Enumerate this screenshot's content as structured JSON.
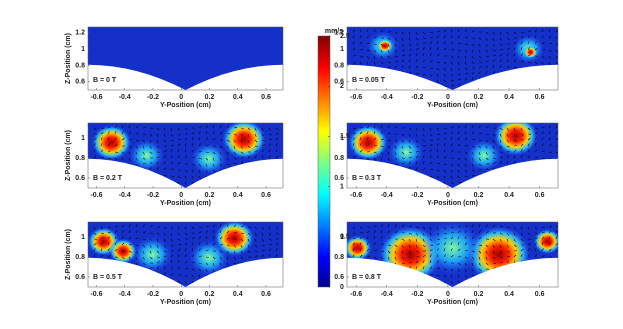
{
  "chart_data": [
    {
      "type": "heatmap",
      "annotation": "B = 0 T",
      "xlabel": "Y-Position (cm)",
      "ylabel": "Z-Position (cm)",
      "xlim": [
        -0.66,
        0.72
      ],
      "ylim": [
        0.5,
        1.27
      ],
      "xticks": [
        -0.6,
        -0.4,
        -0.2,
        0,
        0.2,
        0.4,
        0.6
      ],
      "yticks": [
        0.6,
        0.8,
        1,
        1.2
      ]
    },
    {
      "type": "heatmap",
      "annotation": "B = 0.05 T",
      "xlabel": "Y-Position (cm)",
      "xlim": [
        -0.66,
        0.72
      ],
      "ylim": [
        0.5,
        1.27
      ],
      "xticks": [
        -0.6,
        -0.4,
        -0.2,
        0,
        0.2,
        0.4,
        0.6
      ],
      "yticks": [
        0.6,
        0.8,
        1,
        1.2
      ]
    },
    {
      "type": "heatmap",
      "annotation": "B = 0.2 T",
      "xlabel": "Y-Position (cm)",
      "ylabel": "Z-Position (cm)",
      "xlim": [
        -0.66,
        0.72
      ],
      "ylim": [
        0.5,
        1.15
      ],
      "xticks": [
        -0.6,
        -0.4,
        -0.2,
        0,
        0.2,
        0.4,
        0.6
      ],
      "yticks": [
        0.6,
        0.8,
        1
      ]
    },
    {
      "type": "heatmap",
      "annotation": "B = 0.3 T",
      "xlabel": "Y-Position (cm)",
      "xlim": [
        -0.66,
        0.72
      ],
      "ylim": [
        0.5,
        1.15
      ],
      "xticks": [
        -0.6,
        -0.4,
        -0.2,
        0,
        0.2,
        0.4,
        0.6
      ],
      "yticks": [
        0.6,
        0.8,
        1
      ]
    },
    {
      "type": "heatmap",
      "annotation": "B = 0.5 T",
      "xlabel": "Y-Position (cm)",
      "ylabel": "Z-Position (cm)",
      "xlim": [
        -0.66,
        0.72
      ],
      "ylim": [
        0.5,
        1.15
      ],
      "xticks": [
        -0.6,
        -0.4,
        -0.2,
        0,
        0.2,
        0.4,
        0.6
      ],
      "yticks": [
        0.6,
        0.8,
        1
      ]
    },
    {
      "type": "heatmap",
      "annotation": "B = 0.8 T",
      "xlabel": "Y-Position (cm)",
      "xlim": [
        -0.66,
        0.72
      ],
      "ylim": [
        0.5,
        1.15
      ],
      "xticks": [
        -0.6,
        -0.4,
        -0.2,
        0,
        0.2,
        0.4,
        0.6
      ],
      "yticks": [
        0.6,
        0.8,
        1
      ]
    }
  ],
  "colorbar": {
    "label": "mm/s",
    "lim": [
      0,
      2.5
    ],
    "ticks": [
      0,
      0.5,
      1,
      1.5,
      2,
      2.5
    ]
  }
}
